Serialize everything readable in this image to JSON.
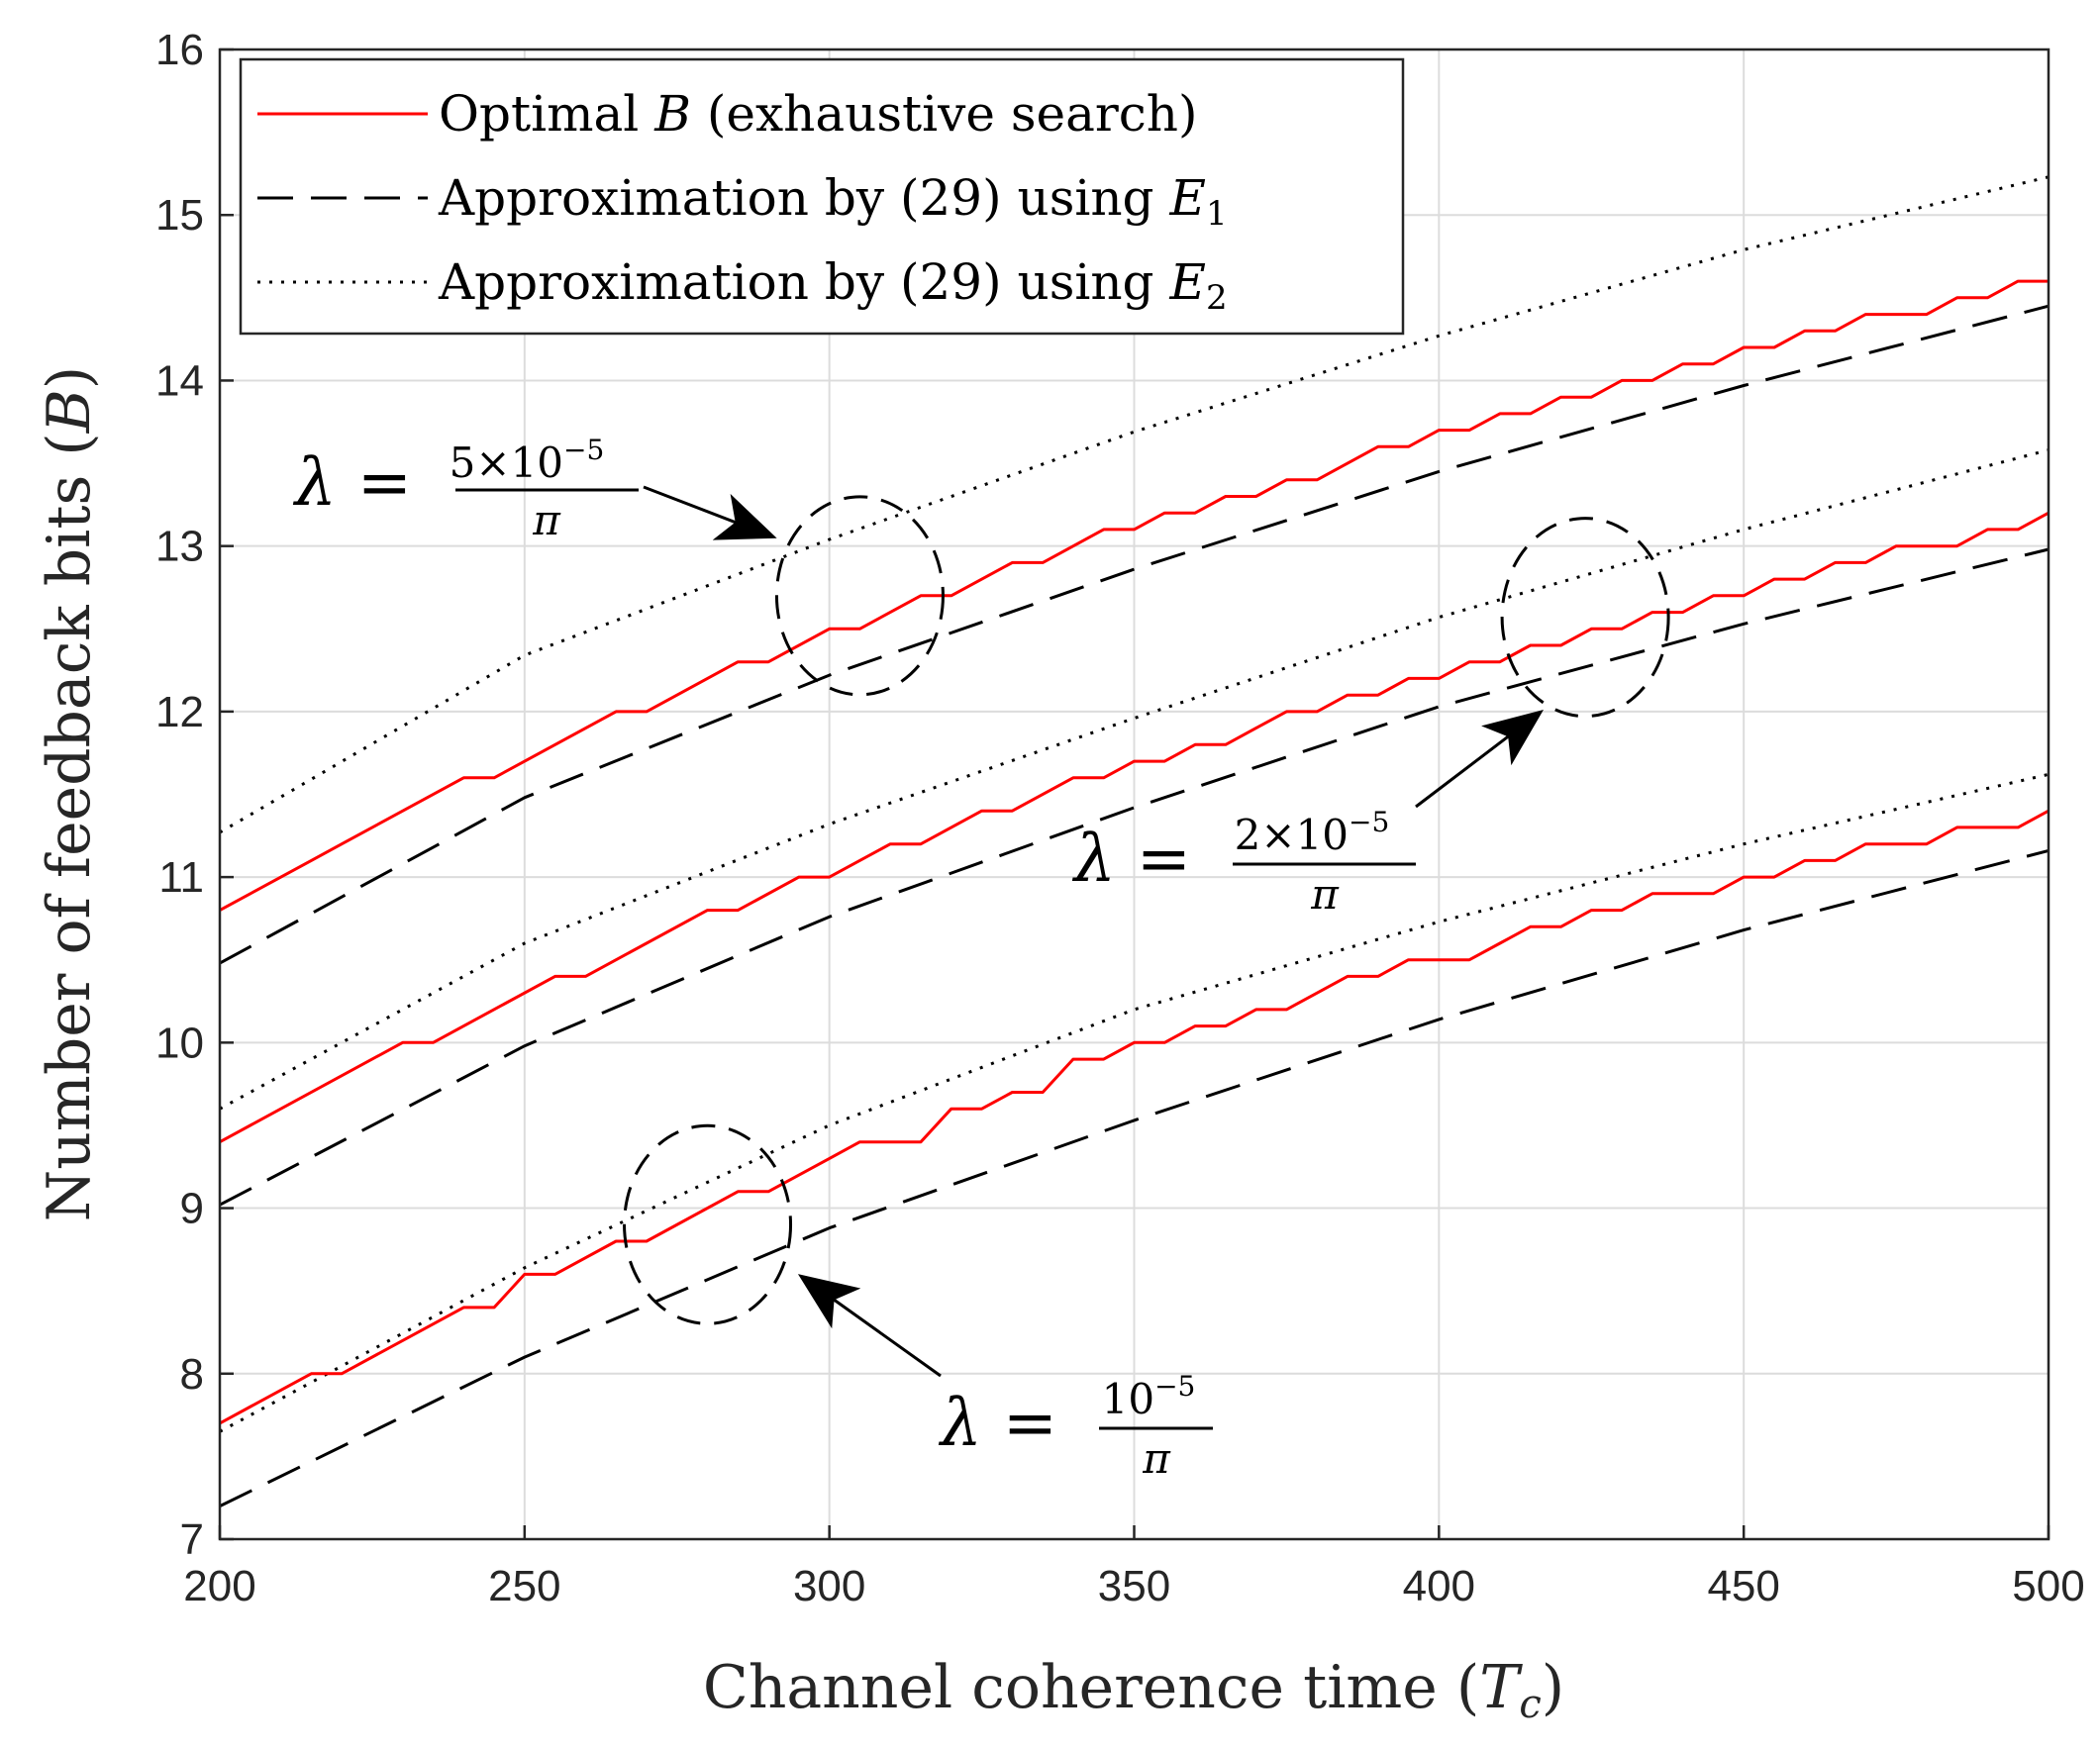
{
  "chart_data": {
    "type": "line",
    "title": "",
    "xlabel": "Channel coherence time (T_c)",
    "xlabel_parts": [
      "Channel coherence time (",
      "T",
      "c",
      ")"
    ],
    "ylabel": "Number of feedback bits (B)",
    "ylabel_parts": [
      "Number of feedback bits (",
      "B",
      ")"
    ],
    "xlim": [
      200,
      500
    ],
    "ylim": [
      7,
      16
    ],
    "xticks": [
      200,
      250,
      300,
      350,
      400,
      450,
      500
    ],
    "yticks": [
      7,
      8,
      9,
      10,
      11,
      12,
      13,
      14,
      15,
      16
    ],
    "grid": true,
    "legend_position": "top-left",
    "legend": [
      {
        "style": "solid",
        "color": "#ff0000",
        "parts": [
          "Optimal ",
          "B",
          " (exhaustive search)"
        ],
        "text": "Optimal B (exhaustive search)"
      },
      {
        "style": "dashed",
        "color": "#000000",
        "parts": [
          "Approximation by (29) using ",
          "E",
          "1"
        ],
        "text": "Approximation by (29) using E1"
      },
      {
        "style": "dotted",
        "color": "#000000",
        "parts": [
          "Approximation by (29) using ",
          "E",
          "2"
        ],
        "text": "Approximation by (29) using E2"
      }
    ],
    "groups": [
      {
        "lambda": "5×10^-5/π",
        "optimal": {
          "x": [
            200,
            215,
            220,
            240,
            245,
            265,
            270,
            285,
            290,
            300,
            305,
            315,
            320,
            330,
            335,
            345,
            350,
            355,
            360,
            365,
            370,
            375,
            380,
            385,
            390,
            395,
            400,
            405,
            410,
            415,
            420,
            425,
            430,
            435,
            440,
            445,
            450,
            455,
            460,
            465,
            470,
            475,
            480,
            485,
            490,
            495,
            500
          ],
          "y": [
            10.8,
            11.1,
            11.2,
            11.6,
            11.6,
            12.0,
            12.0,
            12.3,
            12.3,
            12.5,
            12.5,
            12.7,
            12.7,
            12.9,
            12.9,
            13.1,
            13.1,
            13.2,
            13.2,
            13.3,
            13.3,
            13.4,
            13.4,
            13.5,
            13.6,
            13.6,
            13.7,
            13.7,
            13.8,
            13.8,
            13.9,
            13.9,
            14.0,
            14.0,
            14.1,
            14.1,
            14.2,
            14.2,
            14.3,
            14.3,
            14.4,
            14.4,
            14.4,
            14.5,
            14.5,
            14.6,
            14.6
          ]
        },
        "e1": {
          "x": [
            200,
            250,
            300,
            350,
            400,
            450,
            500
          ],
          "y": [
            10.48,
            11.48,
            12.22,
            12.86,
            13.45,
            13.97,
            14.45
          ]
        },
        "e2": {
          "x": [
            200,
            250,
            300,
            350,
            400,
            450,
            500
          ],
          "y": [
            11.27,
            12.34,
            13.04,
            13.69,
            14.27,
            14.79,
            15.23
          ]
        }
      },
      {
        "lambda": "2×10^-5/π",
        "optimal": {
          "x": [
            200,
            230,
            235,
            255,
            260,
            280,
            285,
            295,
            300,
            310,
            315,
            325,
            330,
            340,
            345,
            350,
            355,
            360,
            365,
            370,
            375,
            380,
            385,
            390,
            395,
            400,
            405,
            410,
            415,
            420,
            425,
            430,
            435,
            440,
            445,
            450,
            455,
            460,
            465,
            470,
            475,
            480,
            485,
            490,
            495,
            500
          ],
          "y": [
            9.4,
            10.0,
            10.0,
            10.4,
            10.4,
            10.8,
            10.8,
            11.0,
            11.0,
            11.2,
            11.2,
            11.4,
            11.4,
            11.6,
            11.6,
            11.7,
            11.7,
            11.8,
            11.8,
            11.9,
            12.0,
            12.0,
            12.1,
            12.1,
            12.2,
            12.2,
            12.3,
            12.3,
            12.4,
            12.4,
            12.5,
            12.5,
            12.6,
            12.6,
            12.7,
            12.7,
            12.8,
            12.8,
            12.9,
            12.9,
            13.0,
            13.0,
            13.0,
            13.1,
            13.1,
            13.2
          ]
        },
        "e1": {
          "x": [
            200,
            250,
            300,
            350,
            400,
            450,
            500
          ],
          "y": [
            9.02,
            9.98,
            10.76,
            11.42,
            12.03,
            12.53,
            12.98
          ]
        },
        "e2": {
          "x": [
            200,
            250,
            300,
            350,
            400,
            450,
            500
          ],
          "y": [
            9.6,
            10.6,
            11.32,
            11.96,
            12.57,
            13.1,
            13.58
          ]
        }
      },
      {
        "lambda": "10^-5/π",
        "optimal": {
          "x": [
            200,
            215,
            220,
            240,
            245,
            250,
            255,
            265,
            270,
            285,
            290,
            300,
            305,
            315,
            320,
            325,
            330,
            335,
            340,
            345,
            350,
            355,
            360,
            365,
            370,
            375,
            380,
            385,
            390,
            395,
            400,
            405,
            410,
            415,
            420,
            425,
            430,
            435,
            440,
            445,
            450,
            455,
            460,
            465,
            470,
            475,
            480,
            485,
            490,
            495,
            500
          ],
          "y": [
            7.7,
            8.0,
            8.0,
            8.4,
            8.4,
            8.6,
            8.6,
            8.8,
            8.8,
            9.1,
            9.1,
            9.3,
            9.4,
            9.4,
            9.6,
            9.6,
            9.7,
            9.7,
            9.9,
            9.9,
            10.0,
            10.0,
            10.1,
            10.1,
            10.2,
            10.2,
            10.3,
            10.4,
            10.4,
            10.5,
            10.5,
            10.5,
            10.6,
            10.7,
            10.7,
            10.8,
            10.8,
            10.9,
            10.9,
            10.9,
            11.0,
            11.0,
            11.1,
            11.1,
            11.2,
            11.2,
            11.2,
            11.3,
            11.3,
            11.3,
            11.4
          ]
        },
        "e1": {
          "x": [
            200,
            250,
            300,
            350,
            400,
            450,
            500
          ],
          "y": [
            7.2,
            8.1,
            8.88,
            9.53,
            10.14,
            10.68,
            11.16
          ]
        },
        "e2": {
          "x": [
            200,
            250,
            300,
            350,
            400,
            450,
            500
          ],
          "y": [
            7.65,
            8.64,
            9.5,
            10.2,
            10.73,
            11.2,
            11.62
          ]
        }
      }
    ],
    "annotations": [
      {
        "id": "lambda-5e-5",
        "text": "λ = 5×10^-5 / π",
        "lhs": "λ =",
        "num_coef": "5×10",
        "den": "π"
      },
      {
        "id": "lambda-2e-5",
        "text": "λ = 2×10^-5 / π",
        "lhs": "λ =",
        "num_coef": "2×10",
        "den": "π"
      },
      {
        "id": "lambda-1e-5",
        "text": "λ = 10^-5 / π",
        "lhs": "λ =",
        "num_coef": "10",
        "den": "π"
      }
    ],
    "exponent": "−5"
  }
}
